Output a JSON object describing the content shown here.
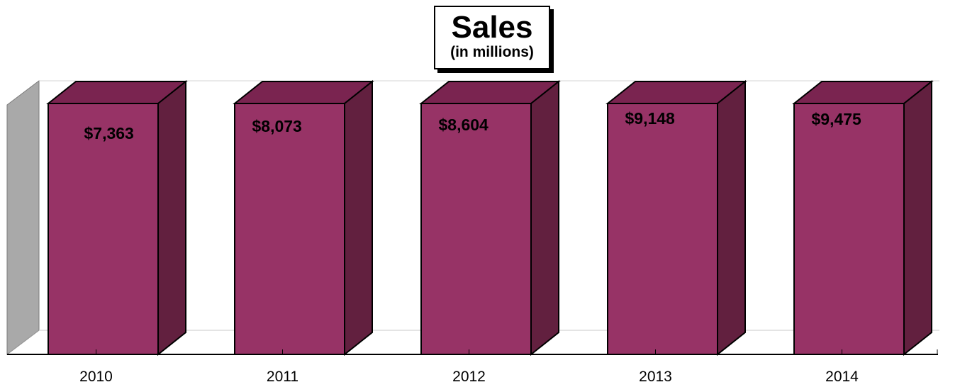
{
  "chart_data": {
    "type": "bar",
    "title": "Sales",
    "subtitle": "(in millions)",
    "categories": [
      "2010",
      "2011",
      "2012",
      "2013",
      "2014"
    ],
    "values": [
      7363,
      8073,
      8604,
      9148,
      9475
    ],
    "value_labels": [
      "$7,363",
      "$8,073",
      "$8,604",
      "$9,148",
      "$9,475"
    ],
    "xlabel": "",
    "ylabel": "",
    "grid": false,
    "legend": "none",
    "style": "3d"
  },
  "colors": {
    "bar_front": "#973366",
    "bar_top": "#7a2450",
    "bar_side": "#62203f",
    "wall": "#b0b0b0",
    "floor": "#ffffff"
  }
}
